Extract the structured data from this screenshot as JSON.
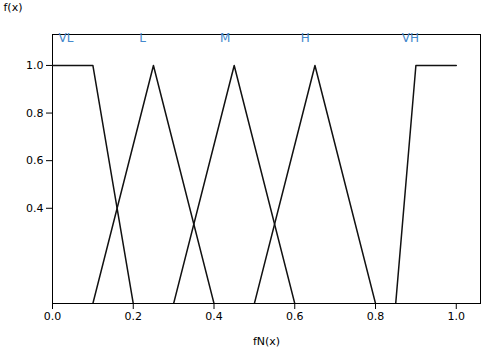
{
  "chart_data": {
    "type": "line",
    "xlabel": "fN(x)",
    "ylabel": "f(x)",
    "xlim": [
      0,
      1.06
    ],
    "ylim": [
      0,
      1.13
    ],
    "xticks": [
      {
        "value": 0,
        "label": "0.0"
      },
      0.2,
      0.4,
      0.6,
      0.8,
      {
        "value": 1.0,
        "label": "1.0"
      }
    ],
    "yticks": [
      0.4,
      0.6,
      0.8,
      {
        "value": 1.0,
        "label": "1.0"
      }
    ],
    "grid": false,
    "series": [
      {
        "color": "#111111",
        "x": [
          0,
          0.1,
          0.2
        ],
        "values": [
          1.0,
          1.0,
          0.0
        ]
      },
      {
        "color": "#111111",
        "x": [
          0.1,
          0.25,
          0.4
        ],
        "values": [
          0.0,
          1.0,
          0.0
        ]
      },
      {
        "color": "#111111",
        "x": [
          0.3,
          0.45,
          0.6
        ],
        "values": [
          0.0,
          1.0,
          0.0
        ]
      },
      {
        "color": "#111111",
        "x": [
          0.5,
          0.65,
          0.8
        ],
        "values": [
          0.0,
          1.0,
          0.0
        ]
      },
      {
        "color": "#111111",
        "x": [
          0.85,
          0.9,
          1.0,
          1.0
        ],
        "values": [
          0.0,
          1.0,
          1.0,
          1.0
        ]
      }
    ],
    "annotations": [
      {
        "text": "VL",
        "x": 0.015,
        "y": 1.1,
        "color": "#4488cc"
      },
      {
        "text": "L",
        "x": 0.215,
        "y": 1.1,
        "color": "#4488cc"
      },
      {
        "text": "M",
        "x": 0.415,
        "y": 1.1,
        "color": "#4488cc"
      },
      {
        "text": "H",
        "x": 0.615,
        "y": 1.1,
        "color": "#4488cc"
      },
      {
        "text": "VH",
        "x": 0.865,
        "y": 1.1,
        "color": "#4488cc"
      }
    ]
  }
}
